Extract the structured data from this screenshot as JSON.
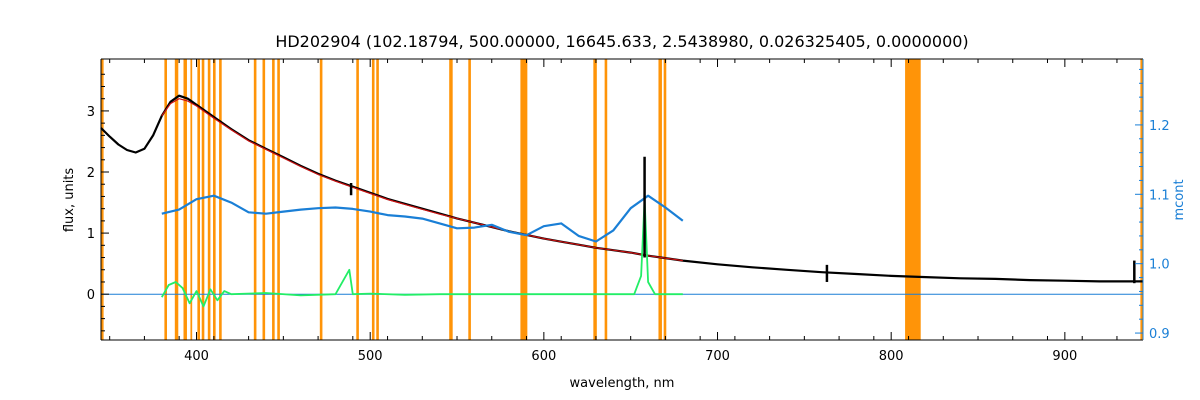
{
  "chart_data": {
    "type": "line",
    "title": "HD202904    (102.18794, 500.00000, 16645.633, 2.5438980, 0.026325405, 0.0000000)",
    "xlabel": "wavelength, nm",
    "ylabel": "flux, units",
    "ylabel_right": "mcont",
    "xlim": [
      345,
      945
    ],
    "ylim": [
      -0.75,
      3.85
    ],
    "ylim_right": [
      0.89,
      1.295
    ],
    "x_ticks": [
      400,
      500,
      600,
      700,
      800,
      900
    ],
    "y_ticks": [
      0,
      1,
      2,
      3
    ],
    "y_ticks_right": [
      0.9,
      1.0,
      1.1,
      1.2
    ],
    "grid": false,
    "colors": {
      "flux": "#000000",
      "model": "#cc1111",
      "residual": "#22ee66",
      "mcont": "#1a7fd6",
      "zero_line": "#1a7fd6",
      "mask": "#ff9408",
      "right_axis": "#1a7fd6"
    },
    "masked_regions": [
      [
        345.0,
        346.5
      ],
      [
        381.5,
        383.0
      ],
      [
        387.5,
        389.5
      ],
      [
        392.5,
        394.5
      ],
      [
        396.5,
        397.5
      ],
      [
        400.5,
        402.0
      ],
      [
        403.0,
        404.5
      ],
      [
        406.5,
        408.0
      ],
      [
        409.5,
        411.0
      ],
      [
        413.0,
        414.5
      ],
      [
        433.0,
        434.5
      ],
      [
        438.0,
        439.5
      ],
      [
        443.5,
        445.0
      ],
      [
        446.5,
        448.0
      ],
      [
        471.0,
        472.5
      ],
      [
        492.0,
        493.5
      ],
      [
        501.0,
        502.5
      ],
      [
        503.5,
        505.0
      ],
      [
        545.5,
        547.5
      ],
      [
        556.5,
        558.0
      ],
      [
        586.5,
        590.5
      ],
      [
        628.5,
        630.5
      ],
      [
        635.0,
        636.5
      ],
      [
        666.0,
        668.0
      ],
      [
        669.0,
        670.5
      ],
      [
        808.0,
        817.0
      ],
      [
        943.5,
        945.0
      ]
    ],
    "series": [
      {
        "key": "flux",
        "x": [
          345,
          350,
          355,
          360,
          365,
          370,
          375,
          380,
          385,
          390,
          395,
          400,
          410,
          420,
          430,
          440,
          450,
          460,
          470,
          480,
          490,
          500,
          510,
          520,
          530,
          540,
          550,
          560,
          570,
          580,
          590,
          600,
          610,
          620,
          630,
          640,
          650,
          660,
          670,
          680,
          700,
          720,
          740,
          760,
          780,
          800,
          820,
          840,
          860,
          880,
          900,
          920,
          940,
          945
        ],
        "y": [
          2.72,
          2.58,
          2.45,
          2.36,
          2.32,
          2.38,
          2.6,
          2.92,
          3.15,
          3.25,
          3.2,
          3.1,
          2.9,
          2.7,
          2.52,
          2.38,
          2.24,
          2.1,
          1.97,
          1.86,
          1.76,
          1.66,
          1.56,
          1.48,
          1.4,
          1.32,
          1.24,
          1.17,
          1.1,
          1.03,
          0.97,
          0.91,
          0.86,
          0.81,
          0.76,
          0.72,
          0.68,
          0.63,
          0.59,
          0.55,
          0.49,
          0.44,
          0.4,
          0.36,
          0.33,
          0.3,
          0.28,
          0.26,
          0.25,
          0.23,
          0.22,
          0.21,
          0.21,
          0.21
        ]
      },
      {
        "key": "model",
        "x": [
          380,
          385,
          390,
          395,
          400,
          410,
          420,
          430,
          440,
          450,
          460,
          470,
          480,
          490,
          500,
          510,
          520,
          530,
          540,
          550,
          560,
          570,
          580,
          590,
          600,
          610,
          620,
          630,
          640,
          650,
          660,
          670,
          680
        ],
        "y": [
          2.92,
          3.12,
          3.2,
          3.16,
          3.08,
          2.88,
          2.69,
          2.51,
          2.37,
          2.23,
          2.09,
          1.96,
          1.85,
          1.75,
          1.65,
          1.55,
          1.47,
          1.39,
          1.31,
          1.24,
          1.17,
          1.1,
          1.03,
          0.97,
          0.91,
          0.86,
          0.81,
          0.76,
          0.72,
          0.68,
          0.63,
          0.59,
          0.55
        ]
      },
      {
        "key": "mcont",
        "x": [
          380,
          390,
          400,
          410,
          420,
          430,
          440,
          450,
          460,
          470,
          480,
          490,
          500,
          510,
          520,
          530,
          540,
          550,
          560,
          570,
          580,
          590,
          600,
          610,
          620,
          630,
          640,
          650,
          660,
          670,
          680
        ],
        "y": [
          1.072,
          1.078,
          1.093,
          1.098,
          1.088,
          1.074,
          1.072,
          1.075,
          1.078,
          1.08,
          1.081,
          1.079,
          1.075,
          1.07,
          1.068,
          1.065,
          1.058,
          1.051,
          1.052,
          1.056,
          1.046,
          1.041,
          1.054,
          1.058,
          1.04,
          1.032,
          1.048,
          1.08,
          1.098,
          1.081,
          1.062
        ]
      },
      {
        "key": "residual",
        "x": [
          380,
          384,
          388,
          392,
          396,
          400,
          404,
          408,
          412,
          416,
          420,
          440,
          460,
          480,
          488,
          490,
          500,
          520,
          540,
          560,
          580,
          600,
          620,
          640,
          652,
          656,
          658,
          660,
          664,
          680
        ],
        "y": [
          -0.05,
          0.15,
          0.2,
          0.1,
          -0.15,
          0.05,
          -0.2,
          0.08,
          -0.1,
          0.05,
          0.0,
          0.02,
          -0.02,
          0.0,
          0.4,
          0.0,
          0.01,
          -0.01,
          0.0,
          0.0,
          0.0,
          0.0,
          0.0,
          0.0,
          0.0,
          0.3,
          1.55,
          0.2,
          0.0,
          0.0
        ]
      },
      {
        "key": "zero_line",
        "x": [
          345,
          945
        ],
        "y": [
          0,
          0
        ]
      }
    ],
    "spikes": [
      {
        "x": 658.0,
        "y0": 0.6,
        "y1": 2.25
      },
      {
        "x": 489.0,
        "y0": 1.62,
        "y1": 1.82
      },
      {
        "x": 763.0,
        "y0": 0.2,
        "y1": 0.48
      },
      {
        "x": 940.0,
        "y0": 0.18,
        "y1": 0.55
      }
    ]
  }
}
